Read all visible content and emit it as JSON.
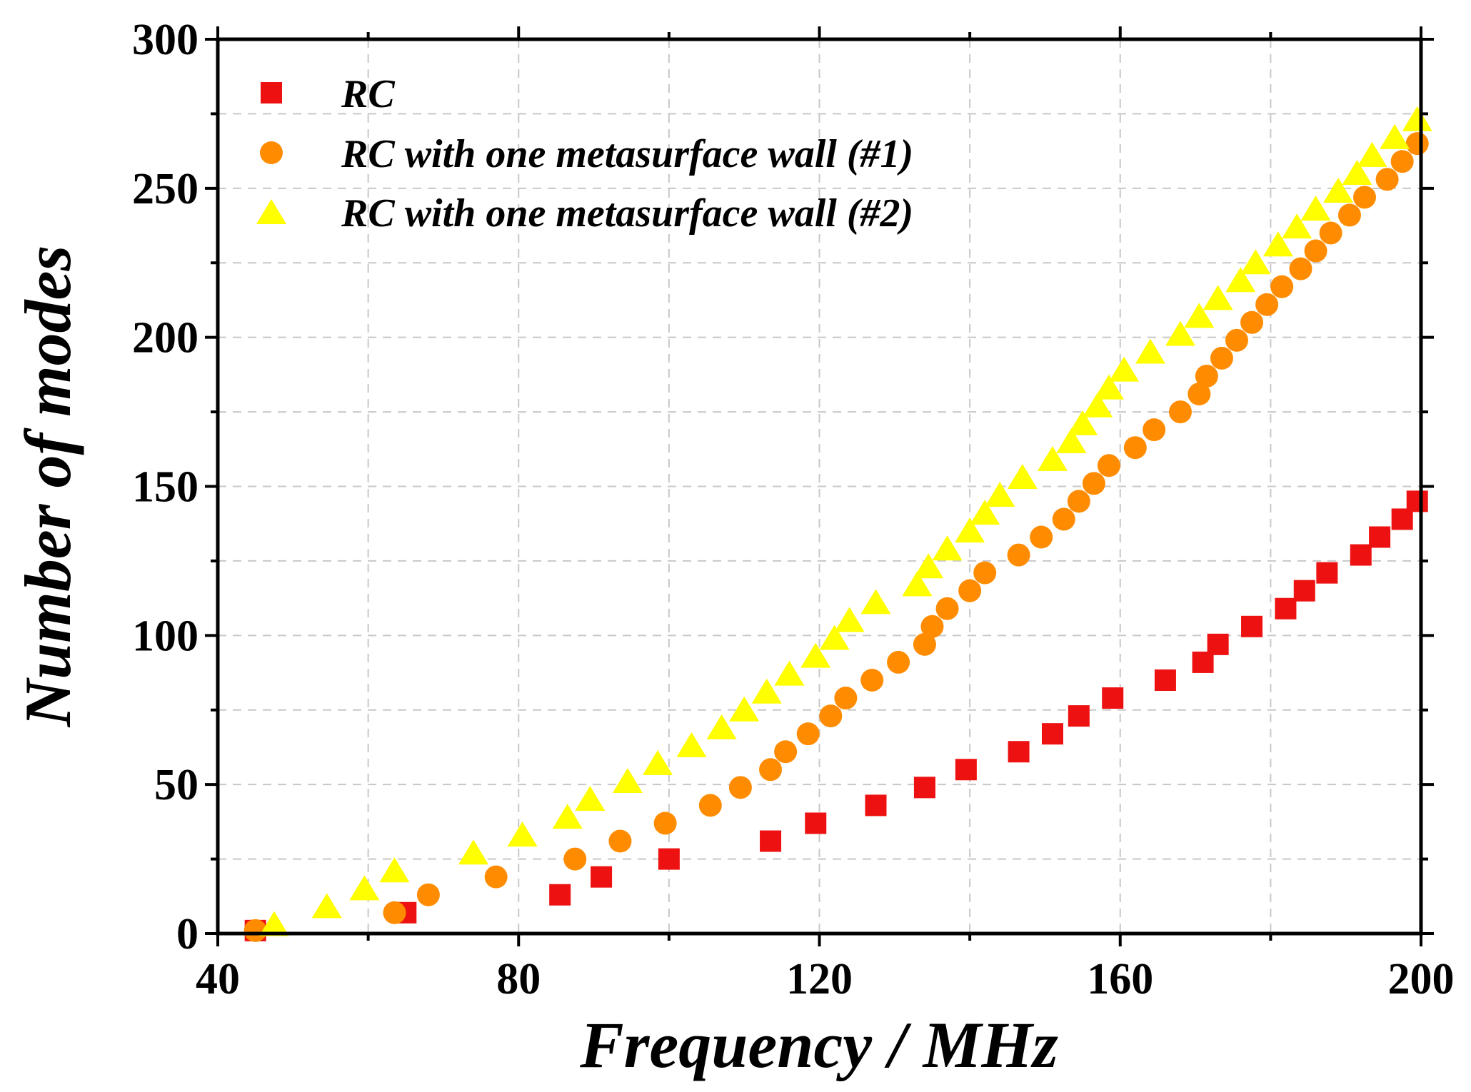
{
  "chart_data": {
    "type": "scatter",
    "title": "",
    "xlabel": "Frequency / MHz",
    "ylabel": "Number of modes",
    "xlim": [
      40,
      200
    ],
    "ylim": [
      0,
      300
    ],
    "xticks": [
      40,
      80,
      120,
      160,
      200
    ],
    "yticks": [
      0,
      50,
      100,
      150,
      200,
      250,
      300
    ],
    "x_tick_labels": [
      "40",
      "80",
      "120",
      "160",
      "200"
    ],
    "y_tick_labels": [
      "0",
      "50",
      "100",
      "150",
      "200",
      "250",
      "300"
    ],
    "grid": true,
    "legend_position": "top-left",
    "series": [
      {
        "name": "RC",
        "marker": "square",
        "color": "#ee1111",
        "points": [
          [
            45,
            1
          ],
          [
            65,
            7
          ],
          [
            85.5,
            13
          ],
          [
            91,
            19
          ],
          [
            100,
            25
          ],
          [
            113.5,
            31
          ],
          [
            119.5,
            37
          ],
          [
            127.5,
            43
          ],
          [
            134,
            49
          ],
          [
            139.5,
            55
          ],
          [
            146.5,
            61
          ],
          [
            151,
            67
          ],
          [
            154.5,
            73
          ],
          [
            159,
            79
          ],
          [
            166,
            85
          ],
          [
            171,
            91
          ],
          [
            173,
            97
          ],
          [
            177.5,
            103
          ],
          [
            182,
            109
          ],
          [
            184.5,
            115
          ],
          [
            187.5,
            121
          ],
          [
            192,
            127
          ],
          [
            194.5,
            133
          ],
          [
            197.5,
            139
          ],
          [
            199.5,
            145
          ]
        ]
      },
      {
        "name": "RC with one metasurface wall (#1)",
        "marker": "circle",
        "color": "#ff8c00",
        "points": [
          [
            45,
            1
          ],
          [
            63.5,
            7
          ],
          [
            68,
            13
          ],
          [
            77,
            19
          ],
          [
            87.5,
            25
          ],
          [
            93.5,
            31
          ],
          [
            99.5,
            37
          ],
          [
            105.5,
            43
          ],
          [
            109.5,
            49
          ],
          [
            113.5,
            55
          ],
          [
            115.5,
            61
          ],
          [
            118.5,
            67
          ],
          [
            121.5,
            73
          ],
          [
            123.5,
            79
          ],
          [
            127,
            85
          ],
          [
            130.5,
            91
          ],
          [
            134,
            97
          ],
          [
            135,
            103
          ],
          [
            137,
            109
          ],
          [
            140,
            115
          ],
          [
            142,
            121
          ],
          [
            146.5,
            127
          ],
          [
            149.5,
            133
          ],
          [
            152.5,
            139
          ],
          [
            154.5,
            145
          ],
          [
            156.5,
            151
          ],
          [
            158.5,
            157
          ],
          [
            162,
            163
          ],
          [
            164.5,
            169
          ],
          [
            168,
            175
          ],
          [
            170.5,
            181
          ],
          [
            171.5,
            187
          ],
          [
            173.5,
            193
          ],
          [
            175.5,
            199
          ],
          [
            177.5,
            205
          ],
          [
            179.5,
            211
          ],
          [
            181.5,
            217
          ],
          [
            184,
            223
          ],
          [
            186,
            229
          ],
          [
            188,
            235
          ],
          [
            190.5,
            241
          ],
          [
            192.5,
            247
          ],
          [
            195.5,
            253
          ],
          [
            197.5,
            259
          ],
          [
            199.5,
            265
          ]
        ]
      },
      {
        "name": "RC with one metasurface wall (#2)",
        "marker": "triangle",
        "color": "#ffff00",
        "points": [
          [
            47.5,
            3
          ],
          [
            54.5,
            9
          ],
          [
            59.5,
            15
          ],
          [
            63.5,
            21
          ],
          [
            74,
            27
          ],
          [
            80.5,
            33
          ],
          [
            86.5,
            39
          ],
          [
            89.5,
            45
          ],
          [
            94.5,
            51
          ],
          [
            98.5,
            57
          ],
          [
            103,
            63
          ],
          [
            107,
            69
          ],
          [
            110,
            75
          ],
          [
            113,
            81
          ],
          [
            116,
            87
          ],
          [
            119.5,
            93
          ],
          [
            122,
            99
          ],
          [
            124,
            105
          ],
          [
            127.5,
            111
          ],
          [
            133,
            117
          ],
          [
            134.5,
            123
          ],
          [
            137,
            129
          ],
          [
            140,
            135
          ],
          [
            142,
            141
          ],
          [
            144,
            147
          ],
          [
            147,
            153
          ],
          [
            151,
            159
          ],
          [
            153.5,
            165
          ],
          [
            155,
            171
          ],
          [
            157,
            177
          ],
          [
            158.5,
            183
          ],
          [
            160.5,
            189
          ],
          [
            164,
            195
          ],
          [
            168,
            201
          ],
          [
            170.5,
            207
          ],
          [
            173,
            213
          ],
          [
            176,
            219
          ],
          [
            178,
            225
          ],
          [
            181,
            231
          ],
          [
            183.5,
            237
          ],
          [
            186,
            243
          ],
          [
            189,
            249
          ],
          [
            191.5,
            255
          ],
          [
            193.5,
            261
          ],
          [
            196.5,
            267
          ],
          [
            199.5,
            273
          ]
        ]
      }
    ]
  }
}
